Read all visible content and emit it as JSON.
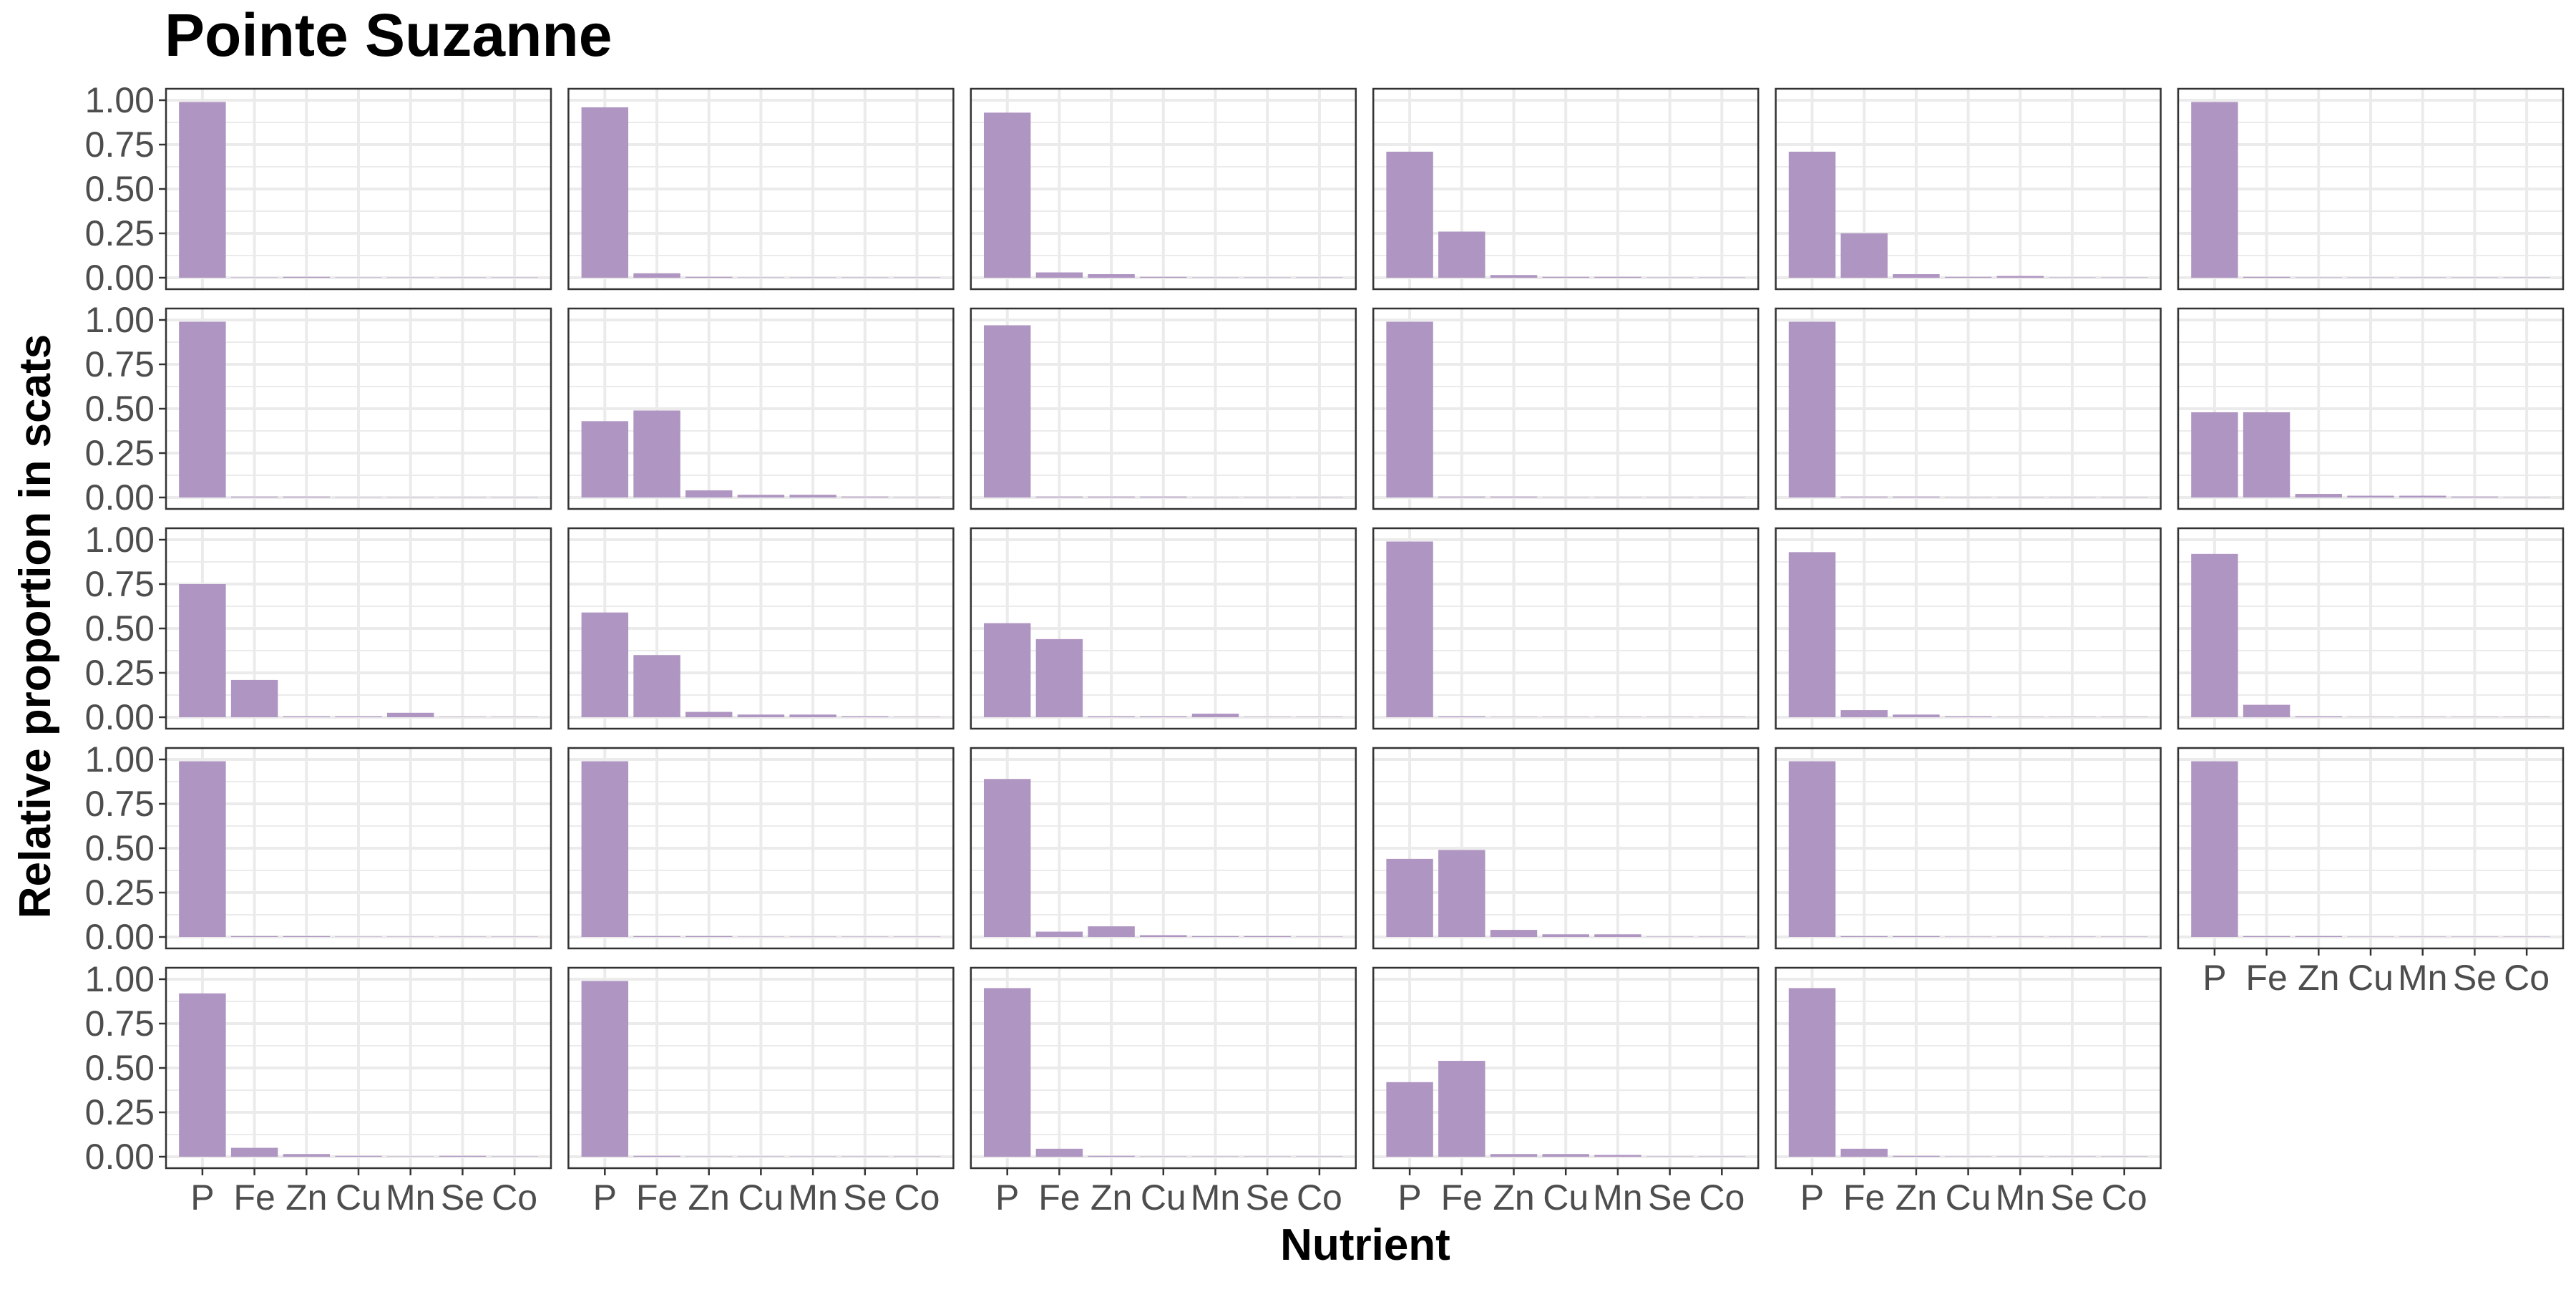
{
  "chart_data": {
    "type": "bar",
    "title": "Pointe Suzanne",
    "xlabel": "Nutrient",
    "ylabel": "Relative proportion in scats",
    "categories": [
      "P",
      "Fe",
      "Zn",
      "Cu",
      "Mn",
      "Se",
      "Co"
    ],
    "ylim": [
      0,
      1.0
    ],
    "yticks": [
      "0.00",
      "0.25",
      "0.50",
      "0.75",
      "1.00"
    ],
    "facet_layout": "6 columns x 5 rows, 29 panels",
    "grid": true,
    "bar_color": "#AF95C1",
    "panels": [
      {
        "values": [
          0.99,
          0.0,
          0.005,
          0.0,
          0.0,
          0.0,
          0.0
        ]
      },
      {
        "values": [
          0.96,
          0.025,
          0.005,
          0.0,
          0.0,
          0.0,
          0.0
        ]
      },
      {
        "values": [
          0.93,
          0.03,
          0.02,
          0.005,
          0.0,
          0.0,
          0.0
        ]
      },
      {
        "values": [
          0.71,
          0.26,
          0.015,
          0.005,
          0.005,
          0.0,
          0.0
        ]
      },
      {
        "values": [
          0.71,
          0.25,
          0.02,
          0.005,
          0.01,
          0.0,
          0.0
        ]
      },
      {
        "values": [
          0.99,
          0.005,
          0.0,
          0.0,
          0.0,
          0.0,
          0.0
        ]
      },
      {
        "values": [
          0.99,
          0.005,
          0.005,
          0.0,
          0.0,
          0.0,
          0.0
        ]
      },
      {
        "values": [
          0.43,
          0.49,
          0.04,
          0.015,
          0.015,
          0.005,
          0.0
        ]
      },
      {
        "values": [
          0.97,
          0.005,
          0.005,
          0.005,
          0.0,
          0.0,
          0.0
        ]
      },
      {
        "values": [
          0.99,
          0.005,
          0.005,
          0.0,
          0.0,
          0.0,
          0.0
        ]
      },
      {
        "values": [
          0.99,
          0.005,
          0.005,
          0.0,
          0.0,
          0.0,
          0.0
        ]
      },
      {
        "values": [
          0.48,
          0.48,
          0.02,
          0.01,
          0.01,
          0.005,
          0.0
        ]
      },
      {
        "values": [
          0.75,
          0.21,
          0.005,
          0.005,
          0.025,
          0.0,
          0.0
        ]
      },
      {
        "values": [
          0.59,
          0.35,
          0.03,
          0.015,
          0.015,
          0.005,
          0.0
        ]
      },
      {
        "values": [
          0.53,
          0.44,
          0.005,
          0.005,
          0.02,
          0.0,
          0.0
        ]
      },
      {
        "values": [
          0.99,
          0.005,
          0.0,
          0.0,
          0.0,
          0.0,
          0.0
        ]
      },
      {
        "values": [
          0.93,
          0.04,
          0.015,
          0.005,
          0.0,
          0.0,
          0.0
        ]
      },
      {
        "values": [
          0.92,
          0.07,
          0.005,
          0.0,
          0.0,
          0.0,
          0.0
        ]
      },
      {
        "values": [
          0.99,
          0.005,
          0.005,
          0.0,
          0.0,
          0.0,
          0.0
        ]
      },
      {
        "values": [
          0.99,
          0.005,
          0.005,
          0.0,
          0.0,
          0.0,
          0.0
        ]
      },
      {
        "values": [
          0.89,
          0.03,
          0.06,
          0.01,
          0.005,
          0.005,
          0.0
        ]
      },
      {
        "values": [
          0.44,
          0.49,
          0.04,
          0.015,
          0.015,
          0.0,
          0.0
        ]
      },
      {
        "values": [
          0.99,
          0.005,
          0.005,
          0.0,
          0.0,
          0.0,
          0.0
        ]
      },
      {
        "values": [
          0.99,
          0.005,
          0.005,
          0.0,
          0.0,
          0.0,
          0.0
        ]
      },
      {
        "values": [
          0.92,
          0.05,
          0.015,
          0.005,
          0.0,
          0.005,
          0.0
        ]
      },
      {
        "values": [
          0.99,
          0.005,
          0.0,
          0.0,
          0.0,
          0.0,
          0.0
        ]
      },
      {
        "values": [
          0.95,
          0.045,
          0.005,
          0.0,
          0.0,
          0.0,
          0.0
        ]
      },
      {
        "values": [
          0.42,
          0.54,
          0.015,
          0.015,
          0.01,
          0.0,
          0.0
        ]
      },
      {
        "values": [
          0.95,
          0.045,
          0.005,
          0.0,
          0.0,
          0.0,
          0.0
        ]
      }
    ]
  }
}
